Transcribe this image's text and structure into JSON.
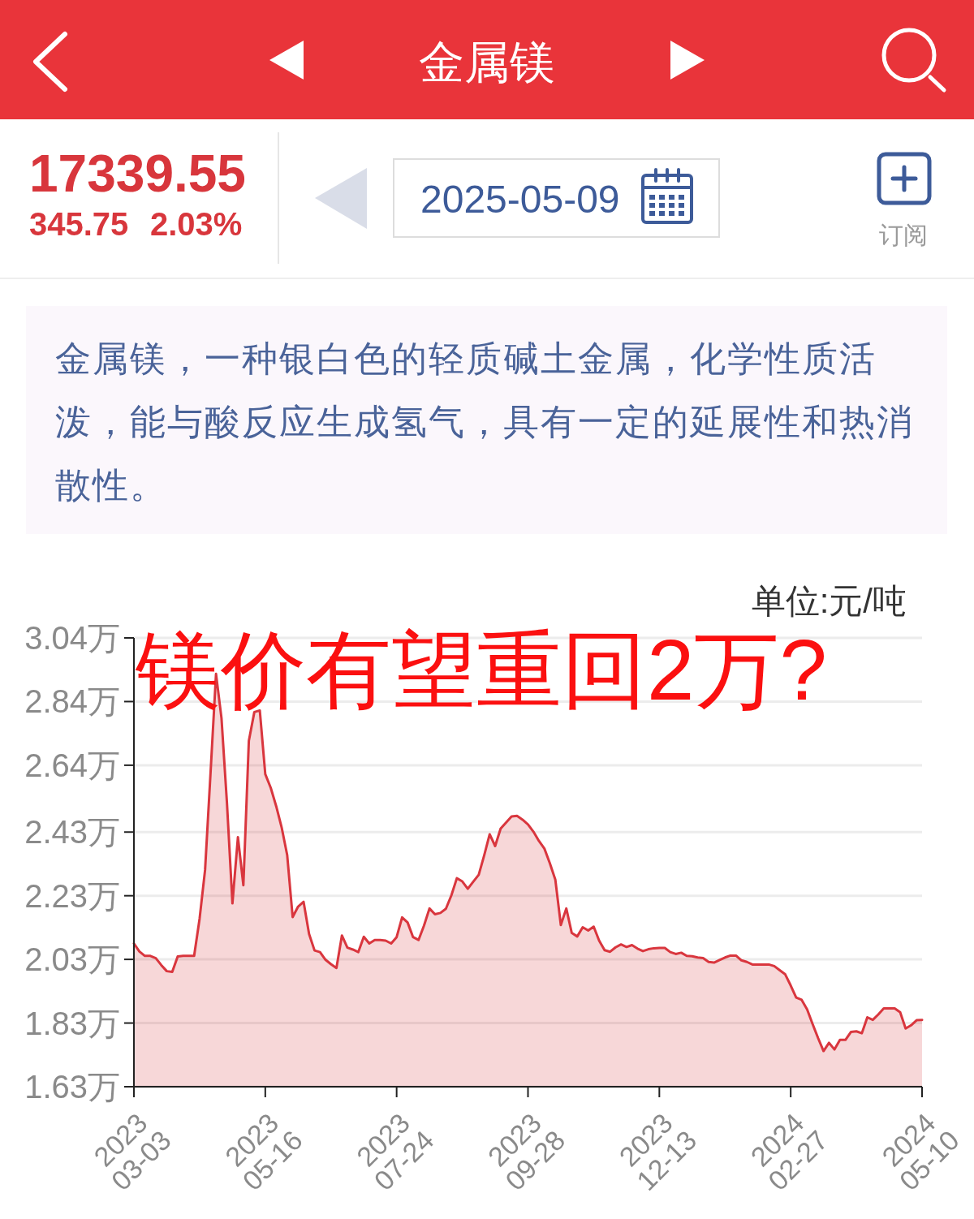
{
  "chart_data": {
    "type": "area",
    "title": "镁价有望重回2万?",
    "ylabel": "单位:元/吨",
    "annotations": [
      "金属镁",
      "17339.55",
      "345.75",
      "2.03%",
      "2025-05-09",
      "订阅",
      "金属镁，一种银白色的轻质碱土金属，化学性质活泼，能与酸反应生成氢气，具有一定的延展性和热消散性。"
    ],
    "categories": [
      "2023\n03-03",
      null,
      null,
      null,
      null,
      null,
      null,
      null,
      null,
      null,
      null,
      null,
      null,
      null,
      null,
      null,
      null,
      null,
      null,
      null,
      null,
      null,
      null,
      null,
      "2023\n05-16",
      null,
      null,
      null,
      null,
      null,
      null,
      null,
      null,
      null,
      null,
      null,
      null,
      null,
      null,
      null,
      null,
      null,
      null,
      null,
      null,
      null,
      null,
      null,
      "2023\n07-24",
      null,
      null,
      null,
      null,
      null,
      null,
      null,
      null,
      null,
      null,
      null,
      null,
      null,
      null,
      null,
      null,
      null,
      null,
      null,
      null,
      null,
      null,
      null,
      "2023\n09-28",
      null,
      null,
      null,
      null,
      null,
      null,
      null,
      null,
      null,
      null,
      null,
      null,
      null,
      null,
      null,
      null,
      null,
      null,
      null,
      null,
      null,
      null,
      null,
      "2023\n12-13",
      null,
      null,
      null,
      null,
      null,
      null,
      null,
      null,
      null,
      null,
      null,
      null,
      null,
      null,
      null,
      null,
      null,
      null,
      null,
      null,
      null,
      null,
      null,
      "2024\n02-27",
      null,
      null,
      null,
      null,
      null,
      null,
      null,
      null,
      null,
      null,
      null,
      null,
      null,
      null,
      null,
      null,
      null,
      null,
      null,
      null,
      null,
      null,
      null,
      "2024\n05-10"
    ],
    "series": [
      {
        "color": "#d9363e",
        "values": [
          2.08,
          2.055,
          2.041,
          2.041,
          2.034,
          2.012,
          1.993,
          1.991,
          2.039,
          2.041,
          2.041,
          2.041,
          2.158,
          2.311,
          2.616,
          2.927,
          2.788,
          2.521,
          2.206,
          2.414,
          2.263,
          2.717,
          2.807,
          2.812,
          2.612,
          2.569,
          2.511,
          2.444,
          2.358,
          2.163,
          2.196,
          2.211,
          2.11,
          2.058,
          2.053,
          2.029,
          2.015,
          2.003,
          2.105,
          2.067,
          2.061,
          2.053,
          2.101,
          2.08,
          2.091,
          2.091,
          2.089,
          2.08,
          2.1,
          2.162,
          2.146,
          2.1,
          2.091,
          2.136,
          2.19,
          2.172,
          2.176,
          2.189,
          2.231,
          2.285,
          2.275,
          2.252,
          2.274,
          2.296,
          2.357,
          2.423,
          2.386,
          2.441,
          2.46,
          2.479,
          2.481,
          2.469,
          2.454,
          2.431,
          2.402,
          2.378,
          2.332,
          2.28,
          2.138,
          2.19,
          2.113,
          2.102,
          2.131,
          2.121,
          2.133,
          2.089,
          2.059,
          2.054,
          2.068,
          2.077,
          2.069,
          2.075,
          2.064,
          2.056,
          2.062,
          2.065,
          2.066,
          2.066,
          2.053,
          2.047,
          2.051,
          2.041,
          2.04,
          2.036,
          2.034,
          2.022,
          2.02,
          2.028,
          2.036,
          2.042,
          2.042,
          2.027,
          2.022,
          2.014,
          2.014,
          2.014,
          2.014,
          2.009,
          1.996,
          1.983,
          1.948,
          1.91,
          1.903,
          1.873,
          1.827,
          1.783,
          1.742,
          1.768,
          1.747,
          1.777,
          1.777,
          1.802,
          1.804,
          1.798,
          1.848,
          1.84,
          1.857,
          1.876,
          1.876,
          1.876,
          1.864,
          1.813,
          1.823,
          1.839,
          1.84
        ]
      }
    ],
    "ylim": [
      1.63,
      3.04
    ],
    "yticks": [
      {
        "value": 1.63,
        "label": "1.63万"
      },
      {
        "value": 1.83,
        "label": "1.83万"
      },
      {
        "value": 2.03,
        "label": "2.03万"
      },
      {
        "value": 2.23,
        "label": "2.23万"
      },
      {
        "value": 2.43,
        "label": "2.43万"
      },
      {
        "value": 2.64,
        "label": "2.64万"
      },
      {
        "value": 2.84,
        "label": "2.84万"
      },
      {
        "value": 3.04,
        "label": "3.04万"
      }
    ],
    "grid": "y"
  }
}
